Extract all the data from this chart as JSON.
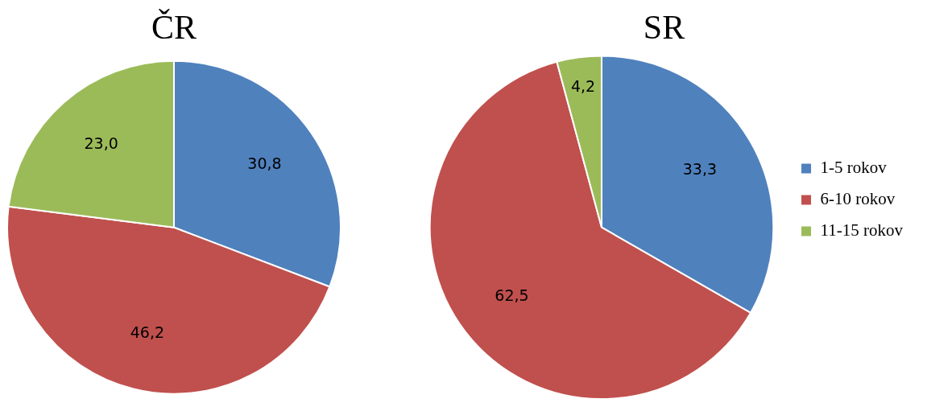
{
  "chart_data": [
    {
      "type": "pie",
      "title": "ČR",
      "categories": [
        null,
        null,
        null
      ],
      "values": [
        30.8,
        46.2,
        23.0
      ],
      "colors": [
        "#4f81bd",
        "#c0504d",
        "#9bbb59"
      ],
      "value_labels": [
        "30,8",
        "46,2",
        "23,0"
      ],
      "legend": false
    },
    {
      "type": "pie",
      "title": "SR",
      "categories": [
        "1-5 rokov",
        "6-10 rokov",
        "11-15 rokov"
      ],
      "values": [
        33.3,
        62.5,
        4.2
      ],
      "colors": [
        "#4f81bd",
        "#c0504d",
        "#9bbb59"
      ],
      "value_labels": [
        "33,3",
        "62,5",
        "4,2"
      ],
      "legend": "right"
    }
  ]
}
